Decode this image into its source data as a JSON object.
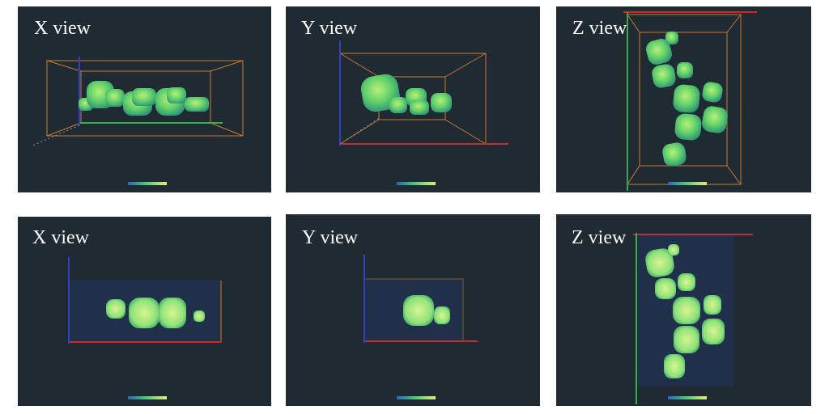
{
  "panels": [
    {
      "label": "X view"
    },
    {
      "label": "Y view"
    },
    {
      "label": "Z view"
    },
    {
      "label": "X view"
    },
    {
      "label": "Y view"
    },
    {
      "label": "Z view"
    }
  ]
}
